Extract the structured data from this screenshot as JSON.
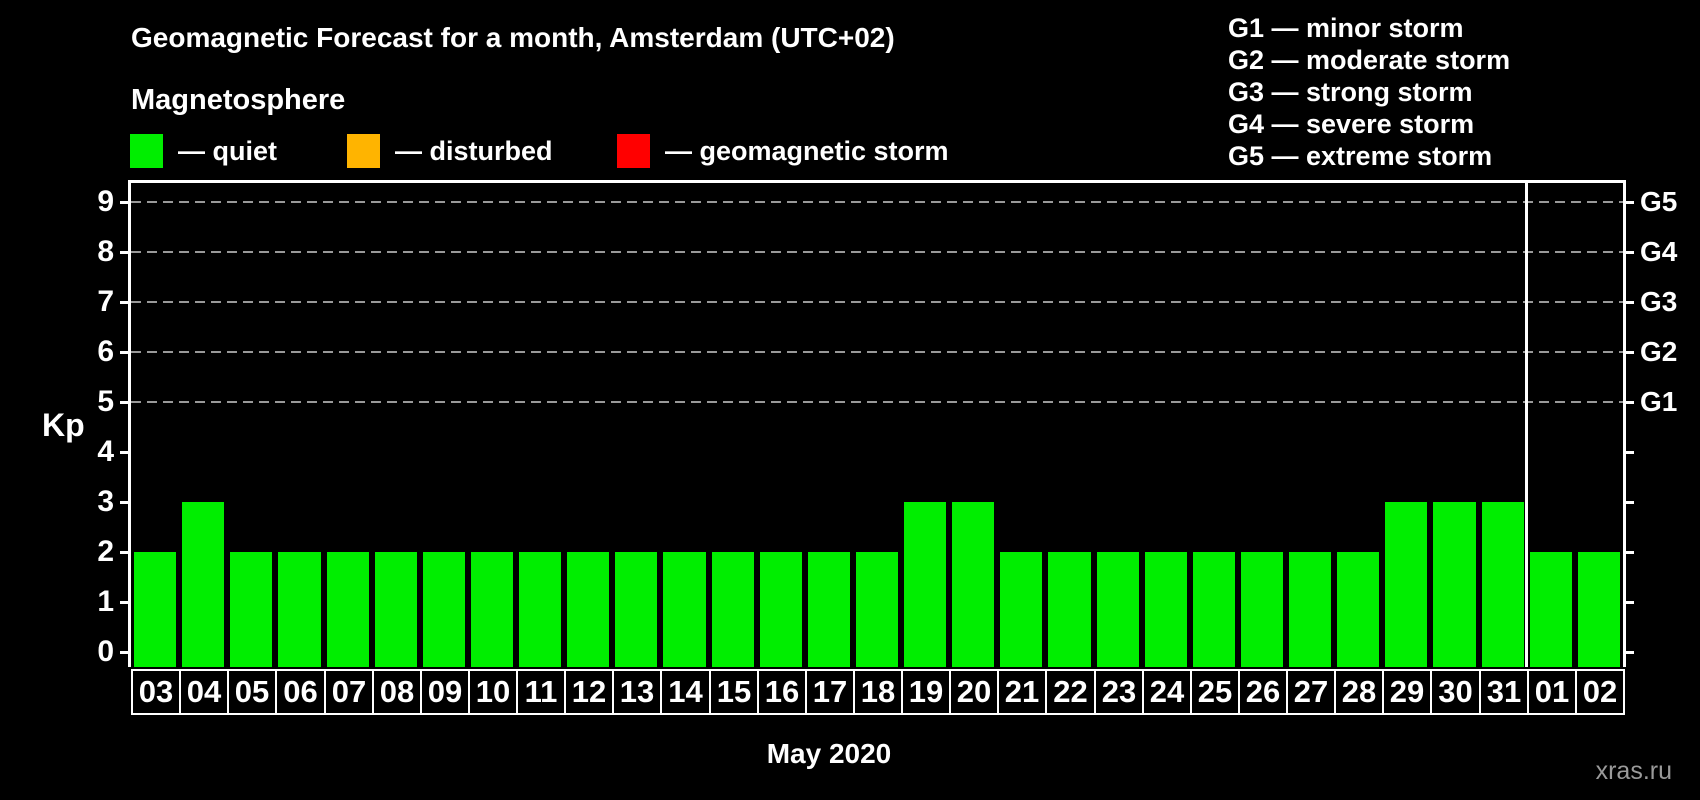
{
  "title": "Geomagnetic Forecast for a month, Amsterdam (UTC+02)",
  "subtitle": "Magnetosphere",
  "legend": {
    "items": [
      {
        "status": "quiet",
        "label": "— quiet",
        "color": "#00ee00"
      },
      {
        "status": "disturbed",
        "label": "— disturbed",
        "color": "#ffb400"
      },
      {
        "status": "storm",
        "label": "— geomagnetic storm",
        "color": "#ff0000"
      }
    ]
  },
  "g_scale_legend": [
    "G1 — minor storm",
    "G2 — moderate storm",
    "G3 — strong storm",
    "G4 — severe storm",
    "G5 — extreme storm"
  ],
  "chart_data": {
    "type": "bar",
    "title": "Geomagnetic Forecast for a month, Amsterdam (UTC+02)",
    "xlabel": "May 2020",
    "ylabel": "Kp",
    "categories": [
      "03",
      "04",
      "05",
      "06",
      "07",
      "08",
      "09",
      "10",
      "11",
      "12",
      "13",
      "14",
      "15",
      "16",
      "17",
      "18",
      "19",
      "20",
      "21",
      "22",
      "23",
      "24",
      "25",
      "26",
      "27",
      "28",
      "29",
      "30",
      "31",
      "01",
      "02"
    ],
    "values": [
      2,
      3,
      2,
      2,
      2,
      2,
      2,
      2,
      2,
      2,
      2,
      2,
      2,
      2,
      2,
      2,
      3,
      3,
      2,
      2,
      2,
      2,
      2,
      2,
      2,
      2,
      3,
      3,
      3,
      2,
      2
    ],
    "bar_color": "#00ee00",
    "ylim": [
      -0.3,
      9.38
    ],
    "y_ticks": [
      0,
      1,
      2,
      3,
      4,
      5,
      6,
      7,
      8,
      9
    ],
    "right_axis_labels": [
      {
        "label": "G1",
        "kp": 5
      },
      {
        "label": "G2",
        "kp": 6
      },
      {
        "label": "G3",
        "kp": 7
      },
      {
        "label": "G4",
        "kp": 8
      },
      {
        "label": "G5",
        "kp": 9
      }
    ],
    "grid_levels": [
      5,
      6,
      7,
      8,
      9
    ],
    "grid_style": "dashed",
    "month_separator_before_category": "01",
    "legend_position": "top-left"
  },
  "watermark": "xras.ru",
  "colors": {
    "background": "#000000",
    "axis": "#ffffff",
    "grid": "#999999",
    "text": "#ffffff",
    "watermark_text": "#9a9a9a",
    "quiet": "#00ee00",
    "disturbed": "#ffb400",
    "storm": "#ff0000"
  }
}
